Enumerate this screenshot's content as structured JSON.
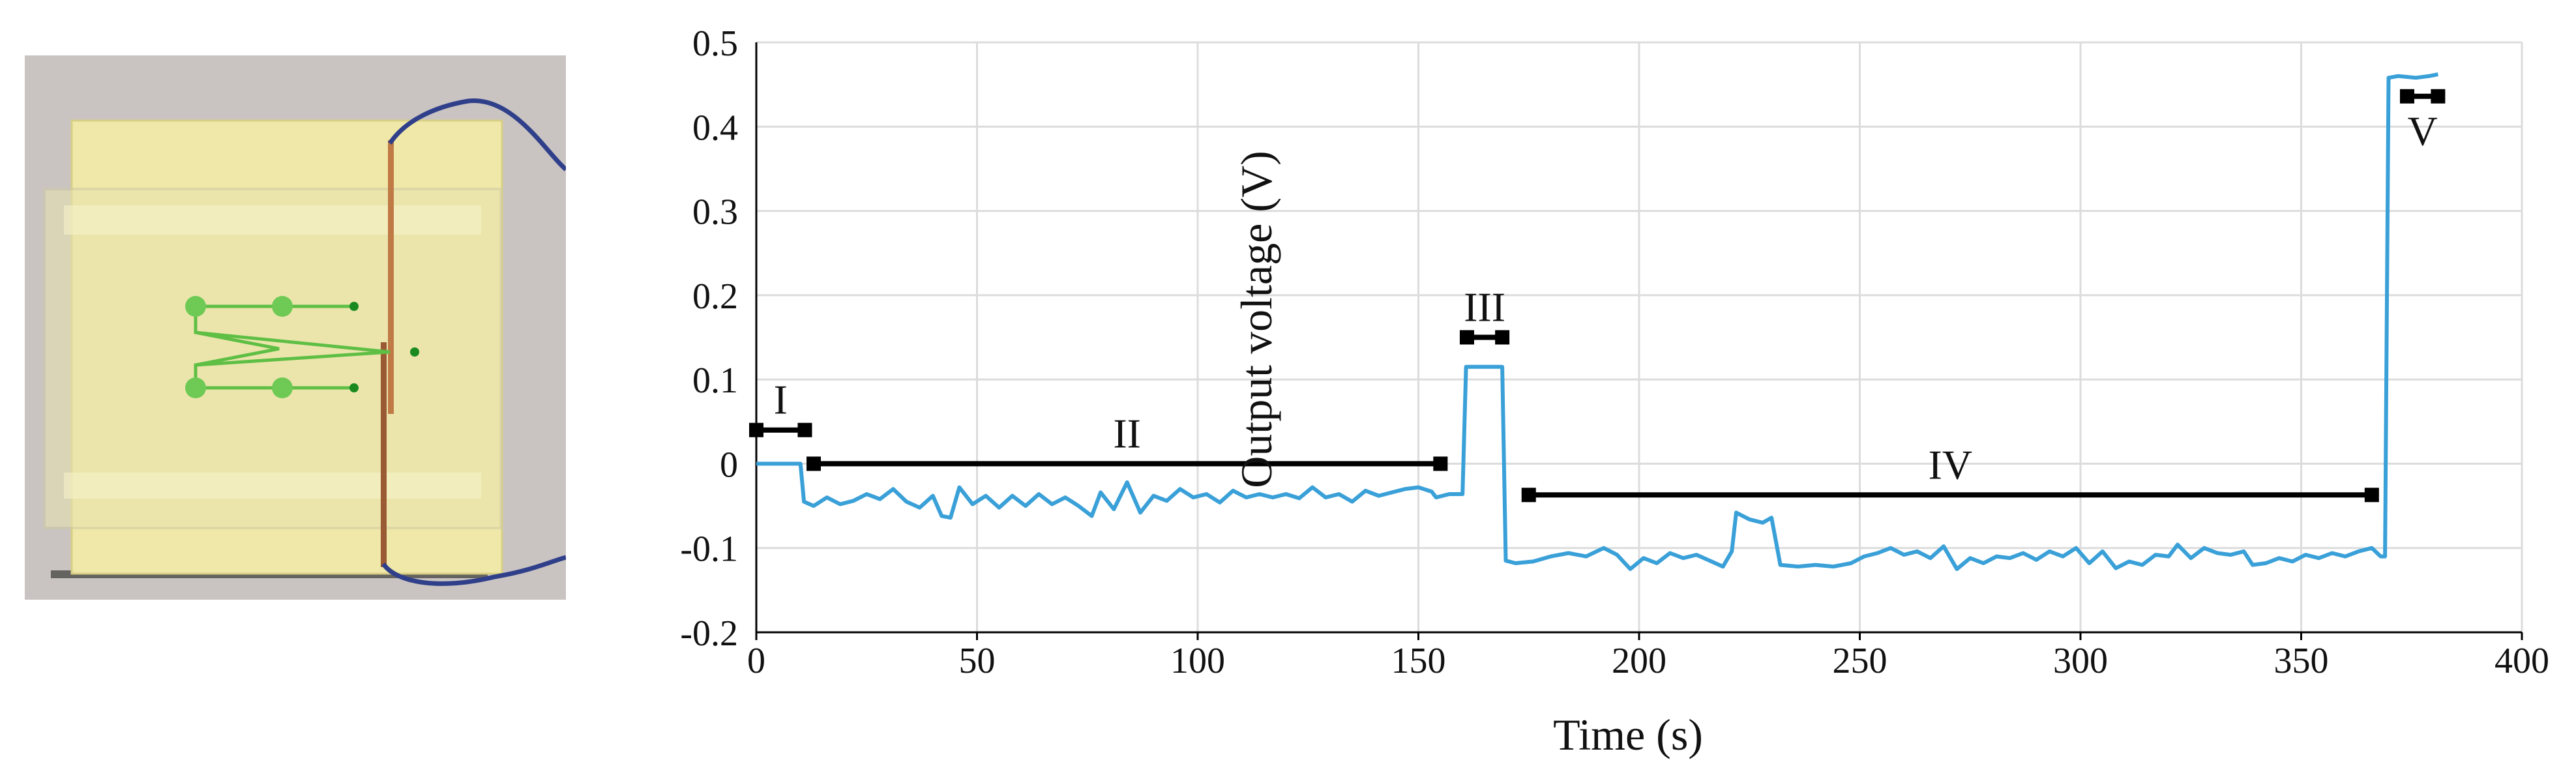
{
  "photo": {
    "subject": "sensor-device-photo"
  },
  "colors": {
    "series": "#3aa0d8",
    "annotation": "#000000",
    "grid": "#dcdcdc"
  },
  "chart_data": {
    "type": "line",
    "xlabel": "Time (s)",
    "ylabel": "Output voltage (V)",
    "xlim": [
      0,
      400
    ],
    "ylim": [
      -0.2,
      0.5
    ],
    "xticks": [
      "0",
      "50",
      "100",
      "150",
      "200",
      "250",
      "300",
      "350",
      "400"
    ],
    "yticks": [
      "-0.2",
      "-0.1",
      "0",
      "0.1",
      "0.2",
      "0.3",
      "0.4",
      "0.5"
    ],
    "grid": true,
    "series": [
      {
        "points": [
          [
            0,
            0.0
          ],
          [
            10,
            0.0
          ],
          [
            10.8,
            -0.045
          ],
          [
            13,
            -0.05
          ],
          [
            16,
            -0.04
          ],
          [
            19,
            -0.048
          ],
          [
            22,
            -0.044
          ],
          [
            25,
            -0.036
          ],
          [
            28,
            -0.042
          ],
          [
            31,
            -0.03
          ],
          [
            34,
            -0.045
          ],
          [
            37,
            -0.052
          ],
          [
            40,
            -0.038
          ],
          [
            42,
            -0.062
          ],
          [
            44,
            -0.064
          ],
          [
            46,
            -0.028
          ],
          [
            49,
            -0.048
          ],
          [
            52,
            -0.038
          ],
          [
            55,
            -0.052
          ],
          [
            58,
            -0.038
          ],
          [
            61,
            -0.05
          ],
          [
            64,
            -0.036
          ],
          [
            67,
            -0.048
          ],
          [
            70,
            -0.04
          ],
          [
            73,
            -0.05
          ],
          [
            76,
            -0.062
          ],
          [
            78,
            -0.034
          ],
          [
            81,
            -0.054
          ],
          [
            84,
            -0.022
          ],
          [
            87,
            -0.058
          ],
          [
            90,
            -0.038
          ],
          [
            93,
            -0.044
          ],
          [
            96,
            -0.03
          ],
          [
            99,
            -0.04
          ],
          [
            102,
            -0.036
          ],
          [
            105,
            -0.046
          ],
          [
            108,
            -0.032
          ],
          [
            111,
            -0.04
          ],
          [
            114,
            -0.036
          ],
          [
            117,
            -0.04
          ],
          [
            120,
            -0.036
          ],
          [
            123,
            -0.041
          ],
          [
            126,
            -0.028
          ],
          [
            129,
            -0.04
          ],
          [
            132,
            -0.036
          ],
          [
            135,
            -0.045
          ],
          [
            138,
            -0.032
          ],
          [
            141,
            -0.038
          ],
          [
            144,
            -0.034
          ],
          [
            147,
            -0.03
          ],
          [
            150,
            -0.028
          ],
          [
            153,
            -0.033
          ],
          [
            154,
            -0.04
          ],
          [
            157,
            -0.036
          ],
          [
            160,
            -0.036
          ],
          [
            160.8,
            0.115
          ],
          [
            169,
            0.115
          ],
          [
            169.8,
            -0.115
          ],
          [
            172,
            -0.118
          ],
          [
            176,
            -0.116
          ],
          [
            180,
            -0.11
          ],
          [
            184,
            -0.106
          ],
          [
            188,
            -0.11
          ],
          [
            192,
            -0.1
          ],
          [
            195,
            -0.108
          ],
          [
            198,
            -0.125
          ],
          [
            201,
            -0.112
          ],
          [
            204,
            -0.118
          ],
          [
            207,
            -0.106
          ],
          [
            210,
            -0.112
          ],
          [
            213,
            -0.108
          ],
          [
            216,
            -0.115
          ],
          [
            219,
            -0.122
          ],
          [
            221,
            -0.104
          ],
          [
            222,
            -0.058
          ],
          [
            225,
            -0.066
          ],
          [
            228,
            -0.07
          ],
          [
            230,
            -0.064
          ],
          [
            232,
            -0.12
          ],
          [
            236,
            -0.122
          ],
          [
            240,
            -0.12
          ],
          [
            244,
            -0.122
          ],
          [
            248,
            -0.118
          ],
          [
            251,
            -0.11
          ],
          [
            254,
            -0.106
          ],
          [
            257,
            -0.1
          ],
          [
            260,
            -0.108
          ],
          [
            263,
            -0.104
          ],
          [
            266,
            -0.112
          ],
          [
            269,
            -0.098
          ],
          [
            272,
            -0.125
          ],
          [
            275,
            -0.112
          ],
          [
            278,
            -0.118
          ],
          [
            281,
            -0.11
          ],
          [
            284,
            -0.112
          ],
          [
            287,
            -0.106
          ],
          [
            290,
            -0.114
          ],
          [
            293,
            -0.104
          ],
          [
            296,
            -0.11
          ],
          [
            299,
            -0.1
          ],
          [
            302,
            -0.118
          ],
          [
            305,
            -0.104
          ],
          [
            308,
            -0.124
          ],
          [
            311,
            -0.116
          ],
          [
            314,
            -0.12
          ],
          [
            317,
            -0.108
          ],
          [
            320,
            -0.11
          ],
          [
            322,
            -0.096
          ],
          [
            325,
            -0.112
          ],
          [
            328,
            -0.1
          ],
          [
            331,
            -0.106
          ],
          [
            334,
            -0.108
          ],
          [
            337,
            -0.104
          ],
          [
            339,
            -0.12
          ],
          [
            342,
            -0.118
          ],
          [
            345,
            -0.112
          ],
          [
            348,
            -0.116
          ],
          [
            351,
            -0.108
          ],
          [
            354,
            -0.112
          ],
          [
            357,
            -0.106
          ],
          [
            360,
            -0.11
          ],
          [
            363,
            -0.104
          ],
          [
            366,
            -0.1
          ],
          [
            368,
            -0.11
          ],
          [
            369,
            -0.11
          ],
          [
            369.8,
            0.458
          ],
          [
            372,
            0.46
          ],
          [
            376,
            0.458
          ],
          [
            379,
            0.46
          ],
          [
            381,
            0.462
          ]
        ]
      }
    ],
    "annotations": [
      {
        "label": "I",
        "x": [
          0,
          11
        ],
        "y": 0.04
      },
      {
        "label": "II",
        "x": [
          13,
          155
        ],
        "y": 0.0
      },
      {
        "label": "III",
        "x": [
          161,
          169
        ],
        "y": 0.15
      },
      {
        "label": "IV",
        "x": [
          175,
          366
        ],
        "y": -0.037
      },
      {
        "label": "V",
        "x": [
          374,
          381
        ],
        "y": 0.436
      }
    ]
  }
}
